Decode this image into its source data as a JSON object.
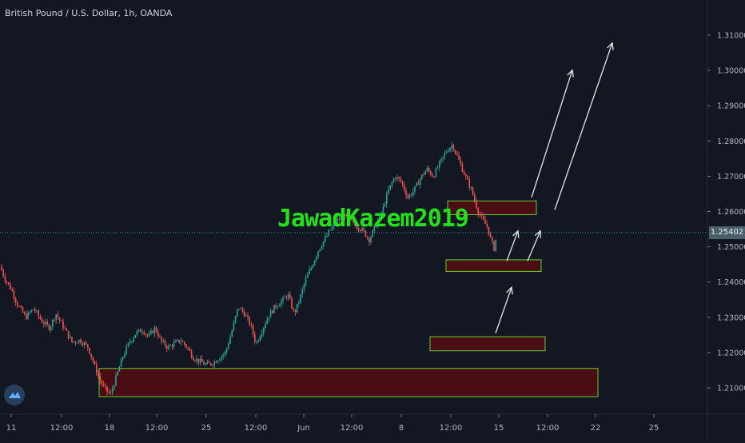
{
  "header": {
    "symbol_title": "British Pound / U.S. Dollar, 1h, OANDA"
  },
  "watermark": {
    "text": "JawadKazem2019"
  },
  "price_scale": {
    "labels": [
      "1.31000",
      "1.30000",
      "1.29000",
      "1.28000",
      "1.27000",
      "1.26000",
      "1.25000",
      "1.24000",
      "1.23000",
      "1.22000",
      "1.21000"
    ],
    "last_price": "1.25402"
  },
  "time_scale": {
    "labels": [
      "11",
      "12:00",
      "18",
      "12:00",
      "25",
      "12:00",
      "Jun",
      "12:00",
      "8",
      "12:00",
      "15",
      "12:00",
      "22",
      "25"
    ]
  },
  "colors": {
    "background": "#131722",
    "candle_up": "#26a69a",
    "candle_down": "#ef5350",
    "zone_fill": "#4a0d14",
    "zone_border": "#5fd12a",
    "arrow": "#e6e6e6",
    "last_price_line": "#2e8fa3",
    "watermark": "#22e01a"
  },
  "icons": {
    "logo": "tradingview-logo-icon"
  },
  "chart_data": {
    "type": "candlestick",
    "title": "British Pound / U.S. Dollar, 1h, OANDA",
    "ylim": [
      1.2035,
      1.3195
    ],
    "last_price": 1.25402,
    "x_tick_labels": [
      "11",
      "12:00",
      "18",
      "12:00",
      "25",
      "12:00",
      "Jun",
      "12:00",
      "8",
      "12:00",
      "15",
      "12:00",
      "22",
      "25"
    ],
    "y_tick_labels": [
      "1.31000",
      "1.30000",
      "1.29000",
      "1.28000",
      "1.27000",
      "1.26000",
      "1.25000",
      "1.24000",
      "1.23000",
      "1.22000",
      "1.21000"
    ],
    "price_path": [
      [
        0,
        1.2445
      ],
      [
        6,
        1.241
      ],
      [
        14,
        1.238
      ],
      [
        22,
        1.2335
      ],
      [
        32,
        1.23
      ],
      [
        42,
        1.2325
      ],
      [
        52,
        1.229
      ],
      [
        62,
        1.227
      ],
      [
        70,
        1.231
      ],
      [
        80,
        1.227
      ],
      [
        90,
        1.223
      ],
      [
        100,
        1.2235
      ],
      [
        110,
        1.2215
      ],
      [
        118,
        1.2165
      ],
      [
        125,
        1.212
      ],
      [
        132,
        1.2095
      ],
      [
        138,
        1.208
      ],
      [
        146,
        1.2135
      ],
      [
        154,
        1.219
      ],
      [
        162,
        1.223
      ],
      [
        170,
        1.2255
      ],
      [
        178,
        1.2265
      ],
      [
        186,
        1.2245
      ],
      [
        194,
        1.227
      ],
      [
        202,
        1.223
      ],
      [
        210,
        1.2215
      ],
      [
        218,
        1.2225
      ],
      [
        226,
        1.2235
      ],
      [
        234,
        1.2215
      ],
      [
        242,
        1.2185
      ],
      [
        250,
        1.2175
      ],
      [
        258,
        1.2165
      ],
      [
        266,
        1.217
      ],
      [
        274,
        1.2185
      ],
      [
        282,
        1.22
      ],
      [
        290,
        1.226
      ],
      [
        298,
        1.233
      ],
      [
        306,
        1.231
      ],
      [
        314,
        1.2275
      ],
      [
        320,
        1.2225
      ],
      [
        328,
        1.2265
      ],
      [
        336,
        1.2305
      ],
      [
        344,
        1.233
      ],
      [
        352,
        1.2345
      ],
      [
        360,
        1.2365
      ],
      [
        368,
        1.231
      ],
      [
        374,
        1.2345
      ],
      [
        382,
        1.2405
      ],
      [
        390,
        1.2445
      ],
      [
        398,
        1.249
      ],
      [
        406,
        1.252
      ],
      [
        414,
        1.255
      ],
      [
        422,
        1.2575
      ],
      [
        430,
        1.2585
      ],
      [
        438,
        1.258
      ],
      [
        446,
        1.256
      ],
      [
        454,
        1.2545
      ],
      [
        462,
        1.252
      ],
      [
        470,
        1.256
      ],
      [
        478,
        1.26
      ],
      [
        486,
        1.266
      ],
      [
        494,
        1.27
      ],
      [
        502,
        1.2685
      ],
      [
        510,
        1.264
      ],
      [
        518,
        1.266
      ],
      [
        526,
        1.2695
      ],
      [
        534,
        1.272
      ],
      [
        542,
        1.27
      ],
      [
        550,
        1.2735
      ],
      [
        558,
        1.277
      ],
      [
        566,
        1.279
      ],
      [
        574,
        1.2745
      ],
      [
        582,
        1.27
      ],
      [
        590,
        1.266
      ],
      [
        598,
        1.26
      ],
      [
        604,
        1.2575
      ],
      [
        610,
        1.2555
      ],
      [
        614,
        1.252
      ],
      [
        618,
        1.2495
      ],
      [
        622,
        1.254
      ]
    ],
    "zones": [
      {
        "from_x": 124,
        "to_x": 748,
        "y_bottom": 1.2075,
        "y_top": 1.2155
      },
      {
        "from_x": 538,
        "to_x": 682,
        "y_bottom": 1.2205,
        "y_top": 1.2245
      },
      {
        "from_x": 558,
        "to_x": 677,
        "y_bottom": 1.243,
        "y_top": 1.2463
      },
      {
        "from_x": 560,
        "to_x": 671,
        "y_bottom": 1.2591,
        "y_top": 1.263
      }
    ],
    "arrows": [
      {
        "x1": 620,
        "y1": 1.2255,
        "x2": 640,
        "y2": 1.2385
      },
      {
        "x1": 634,
        "y1": 1.246,
        "x2": 648,
        "y2": 1.2545
      },
      {
        "x1": 660,
        "y1": 1.246,
        "x2": 676,
        "y2": 1.2545
      },
      {
        "x1": 665,
        "y1": 1.264,
        "x2": 716,
        "y2": 1.3001
      },
      {
        "x1": 694,
        "y1": 1.2605,
        "x2": 766,
        "y2": 1.3078
      }
    ]
  }
}
